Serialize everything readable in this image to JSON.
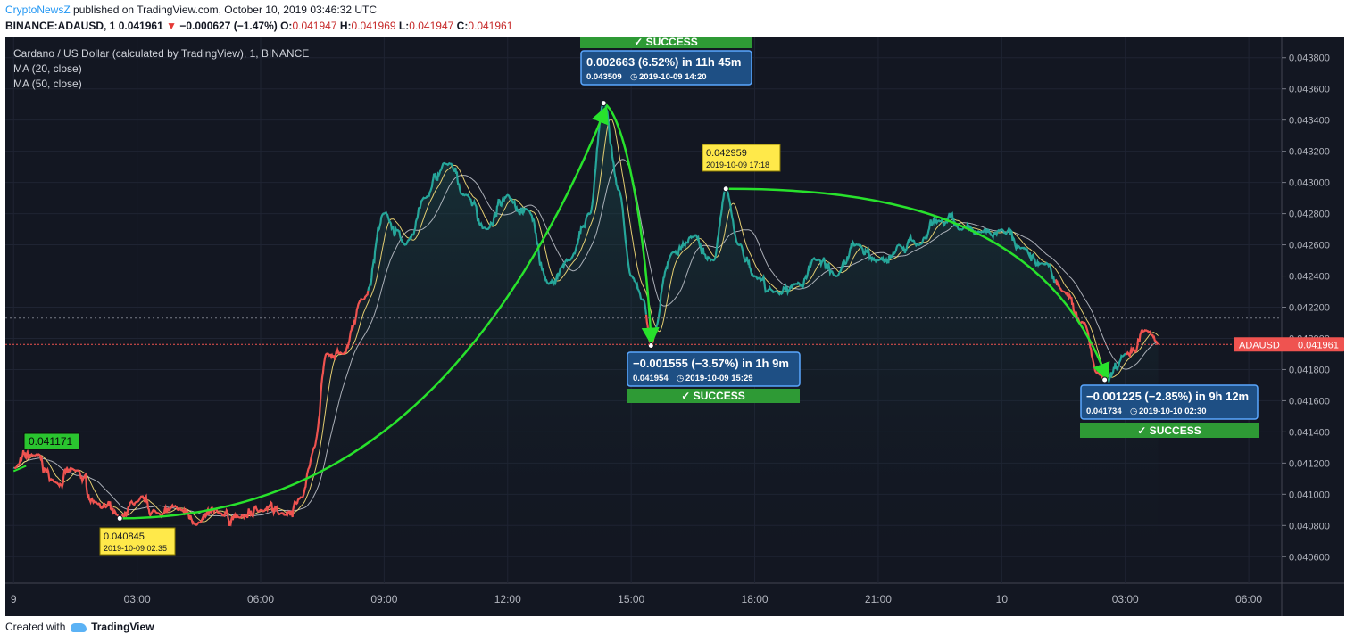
{
  "header": {
    "publisher": "CryptoNewsZ",
    "published_text": "published on TradingView.com, October 10, 2019 03:46:32 UTC",
    "symbol": "BINANCE:ADAUSD, 1",
    "last": "0.041961",
    "change": "−0.000627 (−1.47%)",
    "o_label": "O:",
    "o": "0.041947",
    "h_label": "H:",
    "h": "0.041969",
    "l_label": "L:",
    "l": "0.041947",
    "c_label": "C:",
    "c": "0.041961"
  },
  "legend": {
    "title": "Cardano / US Dollar (calculated by TradingView), 1, BINANCE",
    "ma20": "MA (20, close)",
    "ma50": "MA (50, close)"
  },
  "price_tag": {
    "symbol": "ADAUSD",
    "value": "0.041961"
  },
  "start_tag": "0.041171",
  "annotations": {
    "low1": {
      "price": "0.040845",
      "time": "2019-10-09 02:35"
    },
    "high2": {
      "price": "0.042959",
      "time": "2019-10-09 17:18"
    },
    "measure1": {
      "main": "0.002663 (6.52%) in 11h 45m",
      "price": "0.043509",
      "time": "2019-10-09  14:20",
      "status": "✓ SUCCESS"
    },
    "measure2": {
      "main": "−0.001555 (−3.57%) in 1h 9m",
      "price": "0.041954",
      "time": "2019-10-09  15:29",
      "status": "✓ SUCCESS"
    },
    "measure3": {
      "main": "−0.001225 (−2.85%) in 9h 12m",
      "price": "0.041734",
      "time": "2019-10-10  02:30",
      "status": "✓ SUCCESS"
    }
  },
  "footer": {
    "created_with": "Created with",
    "brand": "TradingView"
  },
  "colors": {
    "up": "#26a69a",
    "down": "#ef5350",
    "ma20": "#f9e079",
    "ma50": "#d1d4dc",
    "arrow": "#28e22c",
    "bg": "#131722",
    "measure_bg": "#1e4f84",
    "success": "#2e9a35",
    "note": "#ffe94a"
  },
  "chart_data": {
    "type": "line",
    "series_name": "ADAUSD",
    "y_axis": [
      "0.040600",
      "0.040800",
      "0.041000",
      "0.041200",
      "0.041400",
      "0.041600",
      "0.041800",
      "0.042000",
      "0.042200",
      "0.042400",
      "0.042600",
      "0.042800",
      "0.043000",
      "0.043200",
      "0.043400",
      "0.043600",
      "0.043800"
    ],
    "x_ticks": [
      "9",
      "03:00",
      "06:00",
      "09:00",
      "12:00",
      "15:00",
      "18:00",
      "21:00",
      "10",
      "03:00",
      "06:00"
    ],
    "ylim": [
      0.04043,
      0.04393
    ],
    "x_hours_range": [
      -0.2,
      30.8
    ],
    "x_hours": [
      0,
      0.5,
      1,
      1.5,
      2,
      2.58,
      3,
      3.5,
      4,
      4.5,
      5,
      5.5,
      6,
      6.5,
      7,
      7.3,
      7.6,
      8,
      8.5,
      9,
      9.5,
      10,
      10.5,
      11,
      11.5,
      12,
      12.5,
      13,
      13.5,
      14,
      14.33,
      14.7,
      15,
      15.3,
      15.48,
      16,
      16.5,
      17,
      17.3,
      17.6,
      18,
      18.5,
      19,
      19.5,
      20,
      20.5,
      21,
      21.5,
      22,
      22.5,
      23,
      23.5,
      24,
      24.5,
      25,
      25.5,
      26,
      26.3,
      26.5,
      27,
      27.5,
      27.8
    ],
    "prices": [
      0.041171,
      0.04125,
      0.04108,
      0.04115,
      0.04095,
      0.040845,
      0.04095,
      0.04088,
      0.0409,
      0.04082,
      0.04088,
      0.04085,
      0.0409,
      0.04088,
      0.04098,
      0.0413,
      0.0419,
      0.0419,
      0.04225,
      0.0428,
      0.0426,
      0.0429,
      0.04312,
      0.04292,
      0.0427,
      0.04292,
      0.04282,
      0.04235,
      0.0425,
      0.0428,
      0.043509,
      0.04295,
      0.0424,
      0.04225,
      0.041954,
      0.04255,
      0.04265,
      0.0425,
      0.042959,
      0.0426,
      0.0424,
      0.0423,
      0.04235,
      0.0425,
      0.0424,
      0.0426,
      0.0425,
      0.0426,
      0.0426,
      0.04275,
      0.0427,
      0.04268,
      0.0427,
      0.04258,
      0.04248,
      0.0423,
      0.0421,
      0.04178,
      0.041734,
      0.0419,
      0.04205,
      0.041961
    ]
  }
}
